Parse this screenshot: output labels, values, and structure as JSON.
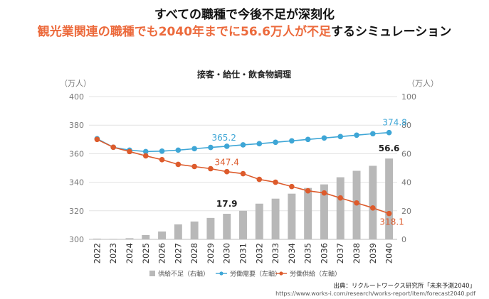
{
  "headline": {
    "line1": "すべての職種で今後不足が深刻化",
    "line2_highlight": "観光業関連の職種でも2040年までに56.6万人が不足",
    "line2_rest": "するシミュレーション",
    "highlight_color": "#ec6a3c"
  },
  "source": {
    "line1": "出典：リクルートワークス研究所「未来予測2040」",
    "line2": "https://www.works-i.com/research/works-report/item/forecast2040.pdf"
  },
  "chart_data": {
    "type": "bar+line",
    "title": "接客・給仕・飲食物調理",
    "left_axis_label": "（万人）",
    "right_axis_label": "（万人）",
    "left_ylim": [
      300,
      400
    ],
    "left_ticks": [
      300,
      320,
      340,
      360,
      380,
      400
    ],
    "right_ylim": [
      0,
      100
    ],
    "right_ticks": [
      0,
      20,
      40,
      60,
      80,
      100
    ],
    "categories": [
      "2022",
      "2023",
      "2024",
      "2025",
      "2026",
      "2027",
      "2028",
      "2029",
      "2030",
      "2031",
      "2032",
      "2033",
      "2034",
      "2035",
      "2036",
      "2037",
      "2038",
      "2039",
      "2040"
    ],
    "bars": {
      "name": "供給不足（右軸）",
      "axis": "right",
      "color": "#b8b8b8",
      "values": [
        0.5,
        0.3,
        0.8,
        3.0,
        5.5,
        10.5,
        12.5,
        15.0,
        17.9,
        20.0,
        25.0,
        28.5,
        32.0,
        36.0,
        38.5,
        43.5,
        48.0,
        51.5,
        56.6
      ]
    },
    "lines": [
      {
        "name": "労働需要（左軸）",
        "axis": "left",
        "color": "#3ea6d6",
        "values": [
          370.5,
          364.5,
          362.5,
          361.5,
          361.8,
          362.5,
          363.5,
          364.4,
          365.2,
          366.2,
          367.0,
          368.0,
          369.0,
          370.0,
          371.0,
          372.0,
          373.0,
          374.0,
          374.8
        ]
      },
      {
        "name": "労働供給（左軸）",
        "axis": "left",
        "color": "#dd5b2c",
        "values": [
          370.0,
          364.5,
          361.5,
          358.5,
          355.8,
          352.5,
          351.0,
          349.5,
          347.4,
          346.0,
          342.0,
          340.0,
          337.0,
          334.0,
          332.5,
          329.0,
          325.5,
          322.0,
          318.1
        ]
      }
    ],
    "annotations": [
      {
        "series": "bars",
        "index": 8,
        "label": "17.9",
        "color": "#222222"
      },
      {
        "series": "bars",
        "index": 18,
        "label": "56.6",
        "color": "#222222"
      },
      {
        "series": "労働需要（左軸）",
        "index": 8,
        "label": "365.2",
        "color": "#3ea6d6"
      },
      {
        "series": "労働需要（左軸）",
        "index": 18,
        "label": "374.8",
        "color": "#3ea6d6"
      },
      {
        "series": "労働供給（左軸）",
        "index": 8,
        "label": "347.4",
        "color": "#dd5b2c"
      },
      {
        "series": "労働供給（左軸）",
        "index": 18,
        "label": "318.1",
        "color": "#dd5b2c"
      }
    ],
    "legend_position": "bottom"
  }
}
